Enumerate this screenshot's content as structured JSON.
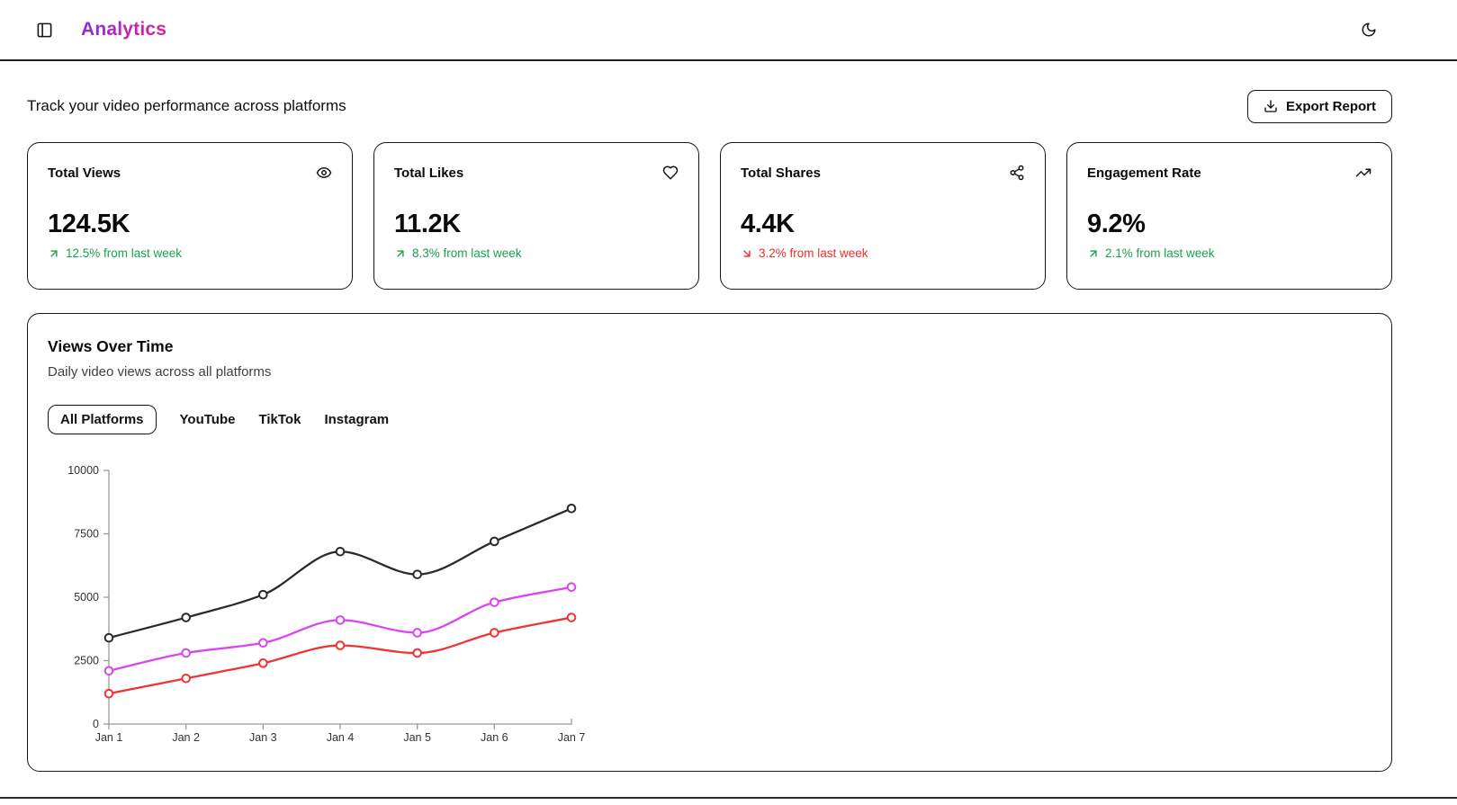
{
  "header": {
    "title": "Analytics",
    "sidebar_toggle_icon": "panel-left-icon",
    "theme_toggle_icon": "moon-icon"
  },
  "subheader": {
    "description": "Track your video performance across platforms",
    "export_button_label": "Export Report",
    "export_button_icon": "download-icon"
  },
  "stats": [
    {
      "title": "Total Views",
      "icon": "eye-icon",
      "value": "124.5K",
      "change": "12.5% from last week",
      "direction": "up"
    },
    {
      "title": "Total Likes",
      "icon": "heart-icon",
      "value": "11.2K",
      "change": "8.3% from last week",
      "direction": "up"
    },
    {
      "title": "Total Shares",
      "icon": "share-icon",
      "value": "4.4K",
      "change": "3.2% from last week",
      "direction": "down"
    },
    {
      "title": "Engagement Rate",
      "icon": "trending-up-icon",
      "value": "9.2%",
      "change": "2.1% from last week",
      "direction": "up"
    }
  ],
  "chart_card": {
    "title": "Views Over Time",
    "subtitle": "Daily video views across all platforms",
    "tabs": [
      {
        "label": "All Platforms",
        "active": true
      },
      {
        "label": "YouTube",
        "active": false
      },
      {
        "label": "TikTok",
        "active": false
      },
      {
        "label": "Instagram",
        "active": false
      }
    ]
  },
  "chart_data": {
    "type": "line",
    "title": "Views Over Time",
    "x": [
      "Jan 1",
      "Jan 2",
      "Jan 3",
      "Jan 4",
      "Jan 5",
      "Jan 6",
      "Jan 7"
    ],
    "series": [
      {
        "name": "black-series",
        "color": "#2b2b2b",
        "values": [
          3400,
          4200,
          5100,
          6800,
          5900,
          7200,
          8500
        ]
      },
      {
        "name": "magenta-series",
        "color": "#d946ef",
        "values": [
          2100,
          2800,
          3200,
          4100,
          3600,
          4800,
          5400
        ]
      },
      {
        "name": "red-series",
        "color": "#ee3434",
        "values": [
          1200,
          1800,
          2400,
          3100,
          2800,
          3600,
          4200
        ]
      }
    ],
    "xlabel": "",
    "ylabel": "",
    "ylim": [
      0,
      10000
    ],
    "yticks": [
      0,
      2500,
      5000,
      7500,
      10000
    ],
    "grid": false,
    "legend": "none",
    "marker": "open-circle",
    "curve": "monotone",
    "axis_color": "#9a9a9a",
    "tick_label_color": "#333333"
  },
  "theme": {
    "positive_color": "#1ca04f",
    "negative_color": "#ef2c2c",
    "title_gradient_start": "#8b2fd6",
    "title_gradient_end": "#e01e9a",
    "card_border_color": "#161616"
  }
}
